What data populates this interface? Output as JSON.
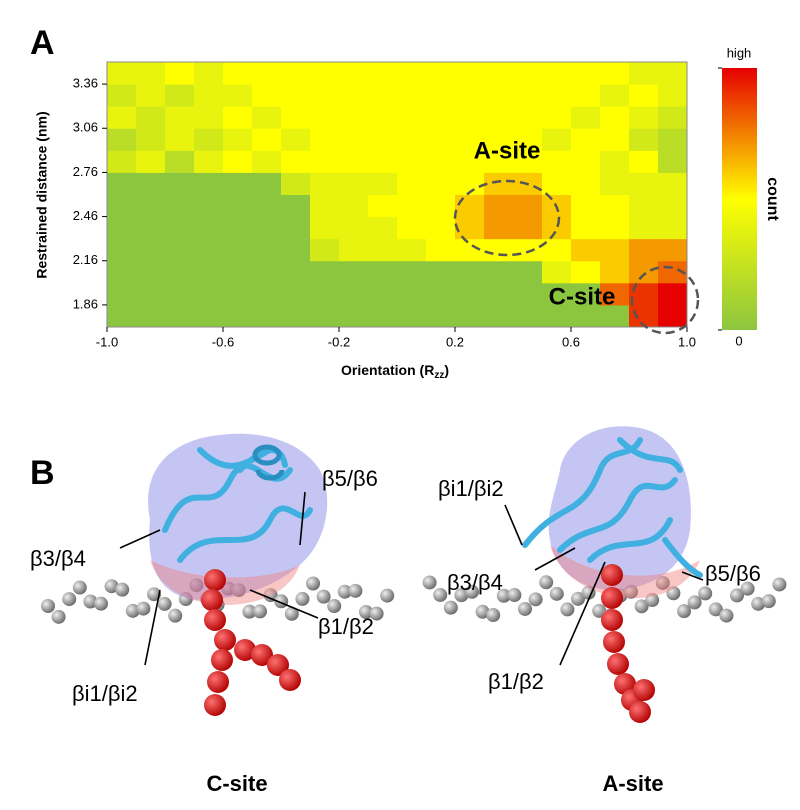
{
  "panel_labels": [
    "A",
    "B"
  ],
  "chart_data": {
    "type": "heatmap",
    "y_label": "Restrained distance (nm)",
    "x_label_parts": [
      "Orientation (R",
      "zz",
      ")"
    ],
    "xlim": [
      -1,
      1
    ],
    "ylim": [
      1.71,
      3.51
    ],
    "xticks": [
      {
        "value": -1,
        "label": "-1.0"
      },
      {
        "value": -0.6,
        "label": "-0.6"
      },
      {
        "value": -0.2,
        "label": "-0.2"
      },
      {
        "value": 0.2,
        "label": "0.2"
      },
      {
        "value": 0.6,
        "label": "0.6"
      },
      {
        "value": 1,
        "label": "1.0"
      }
    ],
    "yticks": [
      1.86,
      2.16,
      2.46,
      2.76,
      3.06,
      3.36
    ],
    "z": [
      [
        0,
        0,
        0,
        0,
        0,
        0,
        0,
        0,
        0,
        0,
        0,
        0,
        0,
        0,
        0,
        0,
        0,
        0,
        9,
        10
      ],
      [
        0,
        0,
        0,
        0,
        0,
        0,
        0,
        0,
        0,
        0,
        0,
        0,
        0,
        0,
        0,
        0,
        0,
        8,
        9,
        10
      ],
      [
        0,
        0,
        0,
        0,
        0,
        0,
        0,
        0,
        0,
        0,
        0,
        0,
        0,
        0,
        0,
        4,
        5,
        6,
        7,
        8
      ],
      [
        0,
        0,
        0,
        0,
        0,
        0,
        0,
        3,
        4,
        4,
        4,
        5,
        5,
        5,
        5,
        5,
        6,
        6,
        7,
        7
      ],
      [
        0,
        0,
        0,
        0,
        0,
        0,
        0,
        4,
        4,
        4,
        5,
        5,
        6,
        7,
        7,
        6,
        5,
        5,
        4,
        4
      ],
      [
        0,
        0,
        0,
        0,
        0,
        0,
        0,
        4,
        4,
        5,
        5,
        5,
        6,
        7,
        7,
        6,
        5,
        5,
        4,
        4
      ],
      [
        0,
        0,
        0,
        0,
        0,
        0,
        3,
        4,
        4,
        4,
        5,
        5,
        5,
        6,
        6,
        5,
        5,
        4,
        4,
        4
      ],
      [
        3,
        4,
        2,
        4,
        5,
        4,
        5,
        5,
        5,
        5,
        5,
        5,
        5,
        5,
        5,
        5,
        5,
        4,
        5,
        2
      ],
      [
        2,
        3,
        4,
        3,
        4,
        5,
        4,
        5,
        5,
        5,
        5,
        5,
        5,
        5,
        5,
        4,
        5,
        5,
        3,
        2
      ],
      [
        4,
        3,
        4,
        4,
        5,
        4,
        5,
        5,
        5,
        5,
        5,
        5,
        5,
        5,
        5,
        5,
        4,
        5,
        4,
        3
      ],
      [
        3,
        4,
        3,
        4,
        4,
        5,
        5,
        5,
        5,
        5,
        5,
        5,
        5,
        5,
        5,
        5,
        5,
        4,
        5,
        4
      ],
      [
        4,
        4,
        5,
        4,
        5,
        5,
        5,
        5,
        5,
        5,
        5,
        5,
        5,
        5,
        5,
        5,
        5,
        5,
        4,
        4
      ]
    ],
    "colorscale": [
      "#8cc63f",
      "#ffff00",
      "#e60000"
    ],
    "colorbar": {
      "title": "count",
      "lim": [
        0,
        10
      ],
      "ticks": [
        {
          "value": 10,
          "label": "high"
        },
        0
      ]
    },
    "annotations": [
      "A-site",
      "C-site"
    ]
  },
  "panel_b": {
    "structures": [
      {
        "caption": "C-site",
        "labels": [
          "β3/β4",
          "β5/β6",
          "βi1/βi2",
          "β1/β2"
        ]
      },
      {
        "caption": "A-site",
        "labels": [
          "βi1/βi2",
          "β3/β4",
          "β1/β2",
          "β5/β6"
        ]
      }
    ]
  }
}
